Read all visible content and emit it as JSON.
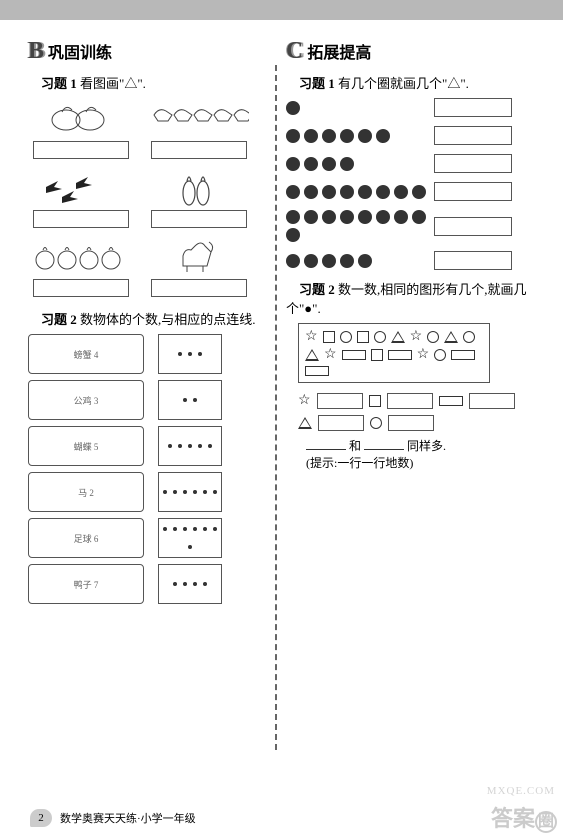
{
  "sectionB": {
    "letter": "B",
    "title": "巩固训练",
    "ex1": {
      "label_prefix": "习题 1",
      "label_text": "看图画\"△\".",
      "cells": [
        {
          "alt": "白菜 2"
        },
        {
          "alt": "马 5"
        },
        {
          "alt": "燕子 3"
        },
        {
          "alt": "萝卜 2"
        },
        {
          "alt": "西红柿 4"
        },
        {
          "alt": "山羊 1"
        }
      ]
    },
    "ex2": {
      "label_prefix": "习题 2",
      "label_text": "数物体的个数,与相应的点连线.",
      "rows": [
        {
          "alt": "螃蟹 4",
          "dots": 3
        },
        {
          "alt": "公鸡 3",
          "dots": 2
        },
        {
          "alt": "蝴蝶 5",
          "dots": 5
        },
        {
          "alt": "马 2",
          "dots": 6
        },
        {
          "alt": "足球 6",
          "dots": 7
        },
        {
          "alt": "鸭子 7",
          "dots": 4
        }
      ]
    }
  },
  "sectionC": {
    "letter": "C",
    "title": "拓展提高",
    "ex1": {
      "label_prefix": "习题 1",
      "label_text": "有几个圈就画几个\"△\".",
      "rows": [
        {
          "dots": 1
        },
        {
          "dots": 6
        },
        {
          "dots": 4
        },
        {
          "dots": 8
        },
        {
          "dots": 9
        },
        {
          "dots": 5
        }
      ]
    },
    "ex2": {
      "label_prefix": "习题 2",
      "label_text": "数一数,相同的图形有几个,就画几个\"●\".",
      "shapes_sequence": [
        "star",
        "sq",
        "circ",
        "sq",
        "circ",
        "tri",
        "star",
        "circ",
        "tri",
        "circ",
        "tri",
        "star",
        "rect",
        "sq",
        "rect",
        "star",
        "circ",
        "rect",
        "rect"
      ],
      "answer_shapes": [
        "star",
        "sq",
        "rect",
        "tri",
        "rect",
        "circ"
      ],
      "compare_text_pre": "",
      "compare_word_he": "和",
      "compare_word_tongyang": "同样多.",
      "hint": "(提示:一行一行地数)"
    }
  },
  "footer": {
    "page_number": "2",
    "book_title": "数学奥赛天天练·小学一年级"
  },
  "watermark": {
    "text_chars": "答案",
    "circle_char": "圈",
    "url": "MXQE.COM"
  },
  "colors": {
    "border": "#555555",
    "dot": "#333333",
    "topbar": "#b8b8b8",
    "ghost": "#dddddd"
  }
}
